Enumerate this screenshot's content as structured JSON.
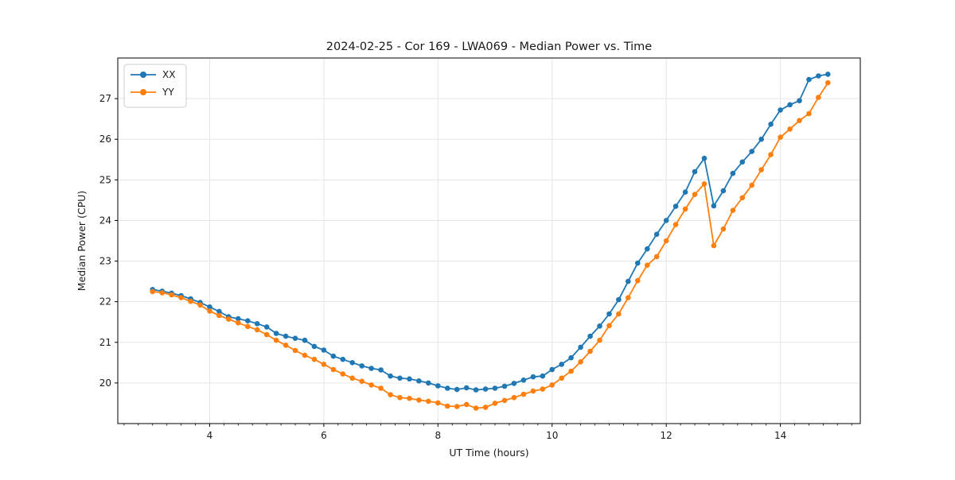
{
  "page": {
    "background": "#ffffff"
  },
  "chart_data": {
    "type": "line",
    "title": "2024-02-25 - Cor 169 - LWA069 - Median Power vs. Time",
    "xlabel": "UT Time (hours)",
    "ylabel": "Median Power (CPU)",
    "xlim": [
      2.39,
      15.4
    ],
    "ylim": [
      19.0,
      28.0
    ],
    "x_major_ticks": [
      4,
      6,
      8,
      10,
      12,
      14
    ],
    "x_minor_step": 0.25,
    "y_major_ticks": [
      20,
      21,
      22,
      23,
      24,
      25,
      26,
      27
    ],
    "grid": true,
    "grid_color": "#e5e5e5",
    "legend_position": "upper-left",
    "marker": "circle",
    "x": [
      3.0,
      3.167,
      3.333,
      3.5,
      3.667,
      3.833,
      4.0,
      4.167,
      4.333,
      4.5,
      4.667,
      4.833,
      5.0,
      5.167,
      5.333,
      5.5,
      5.667,
      5.833,
      6.0,
      6.167,
      6.333,
      6.5,
      6.667,
      6.833,
      7.0,
      7.167,
      7.333,
      7.5,
      7.667,
      7.833,
      8.0,
      8.167,
      8.333,
      8.5,
      8.667,
      8.833,
      9.0,
      9.167,
      9.333,
      9.5,
      9.667,
      9.833,
      10.0,
      10.167,
      10.333,
      10.5,
      10.667,
      10.833,
      11.0,
      11.167,
      11.333,
      11.5,
      11.667,
      11.833,
      12.0,
      12.167,
      12.333,
      12.5,
      12.667,
      12.833,
      13.0,
      13.167,
      13.333,
      13.5,
      13.667,
      13.833,
      14.0,
      14.167,
      14.333,
      14.5,
      14.667,
      14.833
    ],
    "series": [
      {
        "name": "XX",
        "color": "#1f77b4",
        "values": [
          22.3,
          22.26,
          22.21,
          22.15,
          22.07,
          21.98,
          21.87,
          21.76,
          21.63,
          21.58,
          21.53,
          21.46,
          21.38,
          21.22,
          21.15,
          21.1,
          21.05,
          20.9,
          20.81,
          20.66,
          20.58,
          20.5,
          20.42,
          20.36,
          20.32,
          20.17,
          20.12,
          20.1,
          20.05,
          20.0,
          19.93,
          19.87,
          19.84,
          19.88,
          19.83,
          19.85,
          19.87,
          19.92,
          19.99,
          20.07,
          20.15,
          20.17,
          20.33,
          20.46,
          20.62,
          20.88,
          21.15,
          21.4,
          21.7,
          22.05,
          22.5,
          22.95,
          23.3,
          23.66,
          24.0,
          24.35,
          24.7,
          25.2,
          25.53,
          24.36,
          24.73,
          25.16,
          25.44,
          25.7,
          26.0,
          26.37,
          26.72,
          26.85,
          26.95,
          27.47,
          27.56,
          27.6
        ]
      },
      {
        "name": "YY",
        "color": "#ff7f0e",
        "values": [
          22.25,
          22.22,
          22.17,
          22.1,
          22.01,
          21.92,
          21.77,
          21.66,
          21.57,
          21.48,
          21.39,
          21.31,
          21.19,
          21.05,
          20.93,
          20.8,
          20.68,
          20.58,
          20.46,
          20.33,
          20.22,
          20.12,
          20.04,
          19.95,
          19.87,
          19.71,
          19.64,
          19.62,
          19.58,
          19.55,
          19.51,
          19.43,
          19.42,
          19.47,
          19.38,
          19.4,
          19.5,
          19.57,
          19.64,
          19.72,
          19.8,
          19.85,
          19.95,
          20.12,
          20.29,
          20.52,
          20.78,
          21.05,
          21.41,
          21.7,
          22.1,
          22.52,
          22.9,
          23.11,
          23.5,
          23.9,
          24.28,
          24.64,
          24.9,
          23.38,
          23.79,
          24.25,
          24.56,
          24.87,
          25.25,
          25.62,
          26.05,
          26.25,
          26.46,
          26.63,
          27.03,
          27.39
        ]
      }
    ]
  }
}
